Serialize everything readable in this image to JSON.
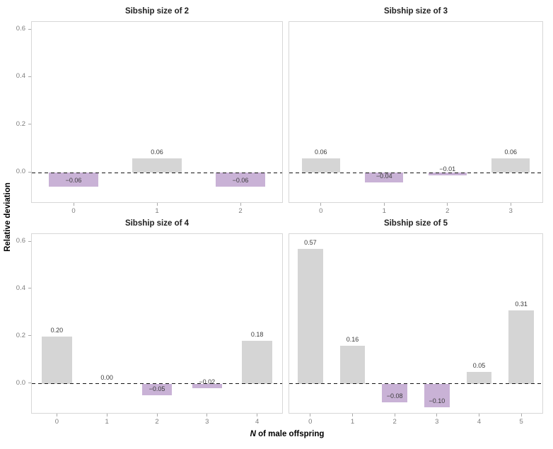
{
  "chart_data": {
    "type": "bar",
    "ylabel": "Relative deviation",
    "xlabel": {
      "italic_part": "N",
      "rest": " of male offspring"
    },
    "ylim": [
      -0.13,
      0.633
    ],
    "yticks": {
      "values": [
        0.0,
        0.2,
        0.4,
        0.6
      ],
      "labels": [
        "0.0",
        "0.2",
        "0.4",
        "0.6"
      ]
    },
    "reference_line": {
      "y": 0,
      "style": "dashed",
      "color": "#141414"
    },
    "grid": "off",
    "legend": "none",
    "bar_colors": {
      "positive": "#d5d5d5",
      "negative": "#c9b2d6"
    },
    "panels": [
      {
        "title": "Sibship size of 2",
        "categories": [
          "0",
          "1",
          "2"
        ],
        "values": [
          -0.06,
          0.06,
          -0.06
        ],
        "value_labels": [
          "−0.06",
          "0.06",
          "−0.06"
        ]
      },
      {
        "title": "Sibship size of 3",
        "categories": [
          "0",
          "1",
          "2",
          "3"
        ],
        "values": [
          0.06,
          -0.04,
          -0.01,
          0.06
        ],
        "value_labels": [
          "0.06",
          "−0.04",
          "−0.01",
          "0.06"
        ]
      },
      {
        "title": "Sibship size of 4",
        "categories": [
          "0",
          "1",
          "2",
          "3",
          "4"
        ],
        "values": [
          0.2,
          0.0,
          -0.05,
          -0.02,
          0.18
        ],
        "value_labels": [
          "0.20",
          "0.00",
          "−0.05",
          "−0.02",
          "0.18"
        ]
      },
      {
        "title": "Sibship size of 5",
        "categories": [
          "0",
          "1",
          "2",
          "3",
          "4",
          "5"
        ],
        "values": [
          0.57,
          0.16,
          -0.08,
          -0.1,
          0.05,
          0.31
        ],
        "value_labels": [
          "0.57",
          "0.16",
          "−0.08",
          "−0.10",
          "0.05",
          "0.31"
        ]
      }
    ]
  }
}
